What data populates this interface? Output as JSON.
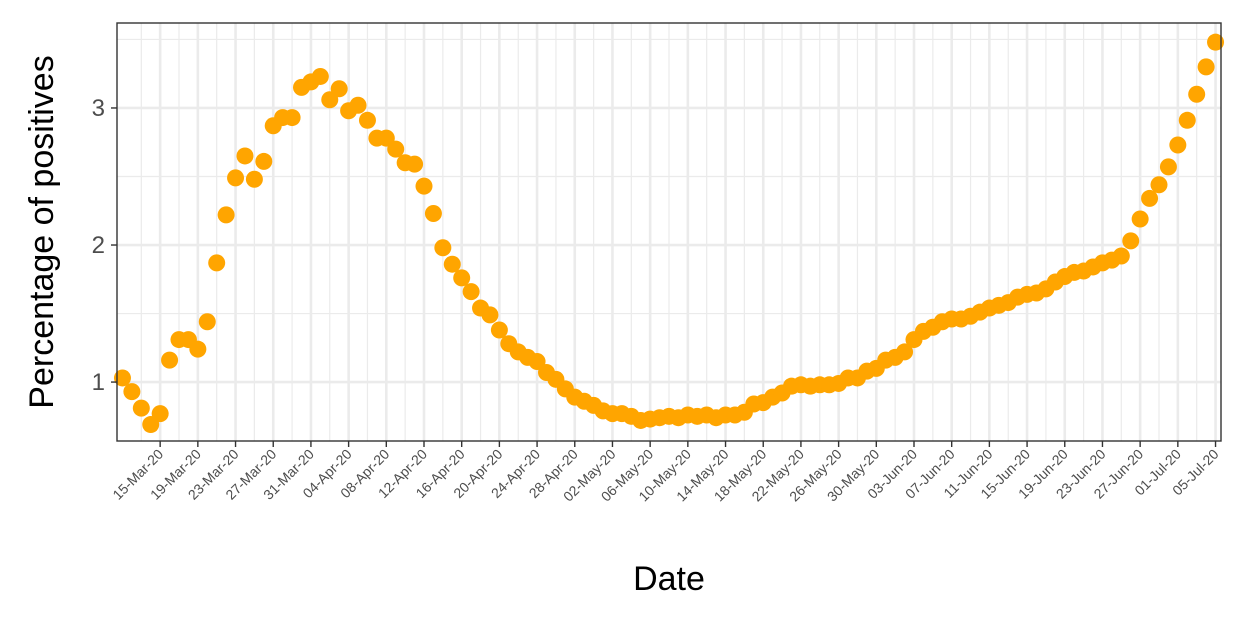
{
  "chart_data": {
    "type": "scatter",
    "title": "",
    "xlabel": "Date",
    "ylabel": "Percentage of positives",
    "start_date": "2020-03-11",
    "x_tick_labels": [
      "15-Mar-20",
      "19-Mar-20",
      "23-Mar-20",
      "27-Mar-20",
      "31-Mar-20",
      "04-Apr-20",
      "08-Apr-20",
      "12-Apr-20",
      "16-Apr-20",
      "20-Apr-20",
      "24-Apr-20",
      "28-Apr-20",
      "02-May-20",
      "06-May-20",
      "10-May-20",
      "14-May-20",
      "18-May-20",
      "22-May-20",
      "26-May-20",
      "30-May-20",
      "03-Jun-20",
      "07-Jun-20",
      "11-Jun-20",
      "15-Jun-20",
      "19-Jun-20",
      "23-Jun-20",
      "27-Jun-20",
      "01-Jul-20",
      "05-Jul-20"
    ],
    "y_ticks": [
      1,
      2,
      3
    ],
    "ylim": [
      0.57,
      3.62
    ],
    "grid": true,
    "legend": "none",
    "point_color": "#FFA500",
    "y": [
      1.03,
      0.93,
      0.81,
      0.69,
      0.77,
      1.16,
      1.31,
      1.31,
      1.24,
      1.44,
      1.87,
      2.22,
      2.49,
      2.65,
      2.48,
      2.61,
      2.87,
      2.93,
      2.93,
      3.15,
      3.19,
      3.23,
      3.06,
      3.14,
      2.98,
      3.02,
      2.91,
      2.78,
      2.78,
      2.7,
      2.6,
      2.59,
      2.43,
      2.23,
      1.98,
      1.86,
      1.76,
      1.66,
      1.54,
      1.49,
      1.38,
      1.28,
      1.22,
      1.18,
      1.15,
      1.07,
      1.02,
      0.95,
      0.89,
      0.86,
      0.83,
      0.79,
      0.77,
      0.77,
      0.75,
      0.72,
      0.73,
      0.74,
      0.75,
      0.74,
      0.76,
      0.75,
      0.76,
      0.74,
      0.76,
      0.76,
      0.78,
      0.84,
      0.85,
      0.89,
      0.92,
      0.97,
      0.98,
      0.97,
      0.98,
      0.98,
      0.99,
      1.03,
      1.03,
      1.08,
      1.1,
      1.16,
      1.18,
      1.22,
      1.31,
      1.37,
      1.4,
      1.44,
      1.46,
      1.46,
      1.48,
      1.51,
      1.54,
      1.56,
      1.58,
      1.62,
      1.64,
      1.65,
      1.68,
      1.73,
      1.77,
      1.8,
      1.81,
      1.84,
      1.87,
      1.89,
      1.92,
      2.03,
      2.19,
      2.34,
      2.44,
      2.57,
      2.73,
      2.91,
      3.1,
      3.3,
      3.48
    ]
  }
}
